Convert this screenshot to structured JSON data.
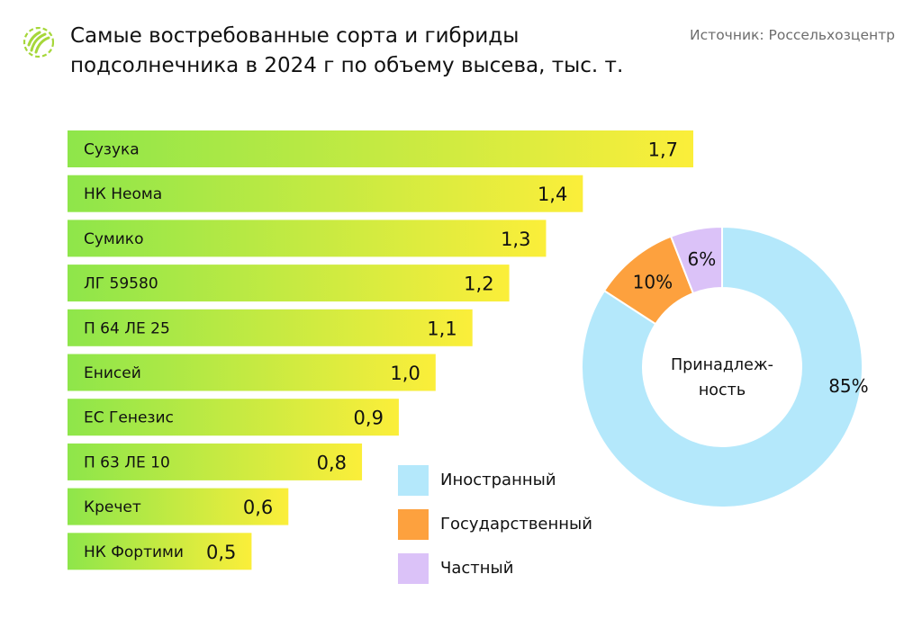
{
  "header": {
    "title": "Самые востребованные сорта и гибриды подсолнечника в 2024 г по объему высева, тыс. т.",
    "source": "Источник: Россельхозцентр",
    "logo_icon": "sunflower-seed-logo-icon"
  },
  "colors": {
    "bar_gradient_start": "#8ee64a",
    "bar_gradient_end": "#fbee3a",
    "foreign": "#b4e8fb",
    "state": "#fda13e",
    "private": "#dbc2f8",
    "logo": "#a6d73a"
  },
  "donut_center": "Принадлеж- ность",
  "chart_data": [
    {
      "type": "bar",
      "orientation": "horizontal",
      "title": "Самые востребованные сорта и гибриды подсолнечника в 2024 г по объему высева, тыс. т.",
      "categories": [
        "Сузука",
        "НК Неома",
        "Сумико",
        "ЛГ 59580",
        "П 64 ЛЕ 25",
        "Енисей",
        "ЕС Генезис",
        "П 63 ЛЕ 10",
        "Кречет",
        "НК Фортими"
      ],
      "values": [
        1.7,
        1.4,
        1.3,
        1.2,
        1.1,
        1.0,
        0.9,
        0.8,
        0.6,
        0.5
      ],
      "value_labels": [
        "1,7",
        "1,4",
        "1,3",
        "1,2",
        "1,1",
        "1,0",
        "0,9",
        "0,8",
        "0,6",
        "0,5"
      ],
      "xlim": [
        0,
        1.7
      ],
      "unit": "тыс. т."
    },
    {
      "type": "pie",
      "subtype": "donut",
      "center_label": "Принадлеж- ность",
      "slices": [
        {
          "name": "Иностранный",
          "value": 85,
          "label": "85%",
          "color": "#b4e8fb"
        },
        {
          "name": "Государственный",
          "value": 10,
          "label": "10%",
          "color": "#fda13e"
        },
        {
          "name": "Частный",
          "value": 6,
          "label": "6%",
          "color": "#dbc2f8"
        }
      ],
      "legend_position": "bottom-left"
    }
  ]
}
